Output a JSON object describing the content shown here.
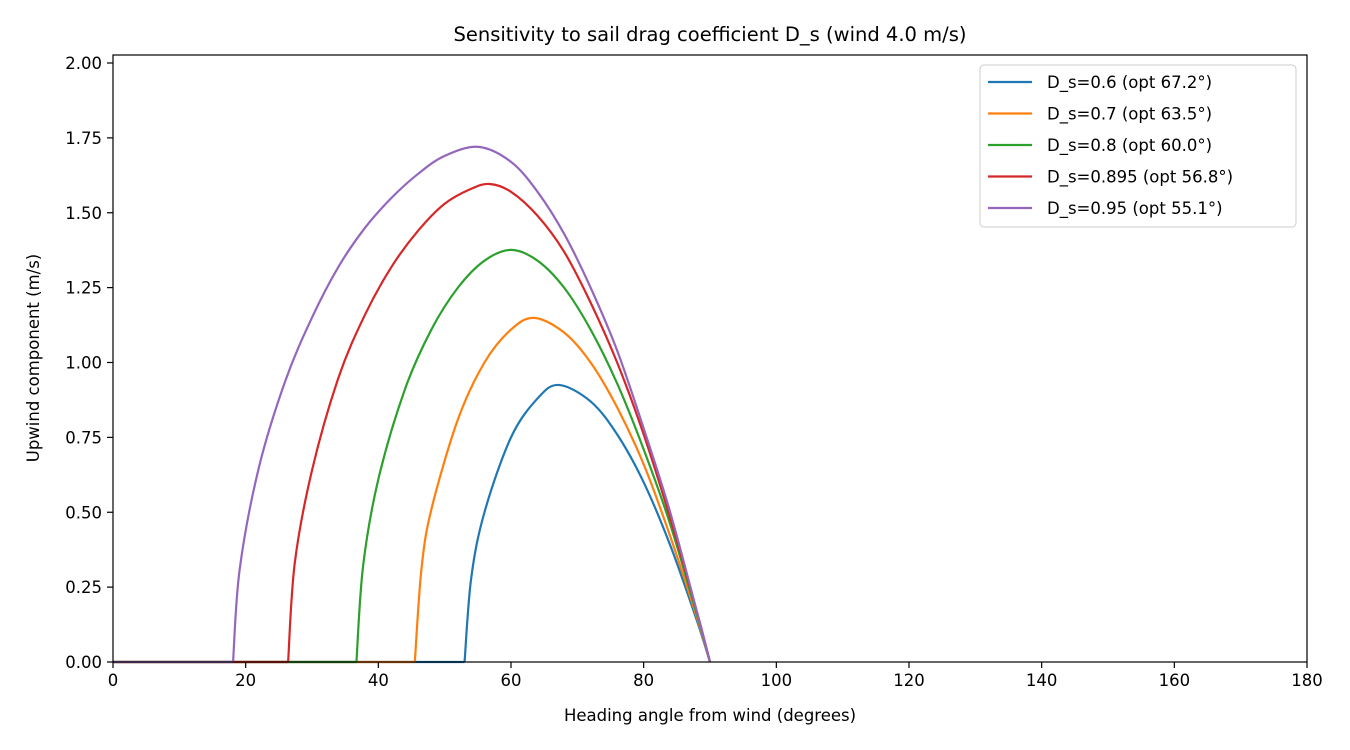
{
  "chart_data": {
    "type": "line",
    "title": "Sensitivity to sail drag coefficient D_s  (wind 4.0 m/s)",
    "xlabel": "Heading angle from wind (degrees)",
    "ylabel": "Upwind component (m/s)",
    "xlim": [
      0,
      180
    ],
    "ylim": [
      0,
      2.03
    ],
    "xticks": [
      0,
      20,
      40,
      60,
      80,
      100,
      120,
      140,
      160,
      180
    ],
    "yticks": [
      "0.00",
      "0.25",
      "0.50",
      "0.75",
      "1.00",
      "1.25",
      "1.50",
      "1.75",
      "2.00"
    ],
    "grid": false,
    "legend_position": "upper right",
    "series": [
      {
        "name": "D_s=0.6  (opt 67.2°)",
        "color": "#1f77b4",
        "x": [
          0,
          53.0,
          54,
          56,
          60,
          64,
          67.2,
          72,
          76,
          80,
          84,
          88,
          90
        ],
        "y": [
          0,
          0,
          0.28,
          0.5,
          0.75,
          0.88,
          0.925,
          0.87,
          0.76,
          0.6,
          0.39,
          0.14,
          0
        ]
      },
      {
        "name": "D_s=0.7  (opt 63.5°)",
        "color": "#ff7f0e",
        "x": [
          0,
          45.5,
          46.5,
          48,
          52,
          56,
          60,
          63.5,
          68,
          72,
          76,
          80,
          84,
          88,
          90
        ],
        "y": [
          0,
          0,
          0.31,
          0.51,
          0.81,
          1.0,
          1.11,
          1.149,
          1.1,
          1.0,
          0.85,
          0.66,
          0.42,
          0.15,
          0
        ]
      },
      {
        "name": "D_s=0.8  (opt 60.0°)",
        "color": "#2ca02c",
        "x": [
          0,
          36.7,
          37.7,
          40,
          44,
          48,
          52,
          56,
          60,
          64,
          68,
          72,
          76,
          80,
          84,
          88,
          90
        ],
        "y": [
          0,
          0,
          0.32,
          0.61,
          0.91,
          1.11,
          1.25,
          1.34,
          1.376,
          1.34,
          1.25,
          1.11,
          0.93,
          0.71,
          0.46,
          0.16,
          0
        ]
      },
      {
        "name": "D_s=0.895  (opt 56.8°)",
        "color": "#d62728",
        "x": [
          0,
          26.4,
          27.4,
          30,
          34,
          38,
          42,
          46,
          50,
          54,
          56.8,
          60,
          64,
          68,
          72,
          76,
          80,
          84,
          88,
          90
        ],
        "y": [
          0,
          0,
          0.33,
          0.64,
          0.95,
          1.16,
          1.32,
          1.44,
          1.53,
          1.58,
          1.596,
          1.57,
          1.49,
          1.37,
          1.2,
          1.0,
          0.76,
          0.48,
          0.17,
          0
        ]
      },
      {
        "name": "D_s=0.95  (opt 55.1°)",
        "color": "#9467bd",
        "x": [
          0,
          18.1,
          19.1,
          22,
          26,
          30,
          34,
          38,
          42,
          46,
          50,
          55.1,
          60,
          64,
          68,
          72,
          76,
          80,
          84,
          88,
          90
        ],
        "y": [
          0,
          0,
          0.31,
          0.65,
          0.94,
          1.15,
          1.32,
          1.45,
          1.55,
          1.63,
          1.69,
          1.72,
          1.67,
          1.57,
          1.43,
          1.25,
          1.04,
          0.78,
          0.5,
          0.17,
          0
        ]
      }
    ]
  }
}
